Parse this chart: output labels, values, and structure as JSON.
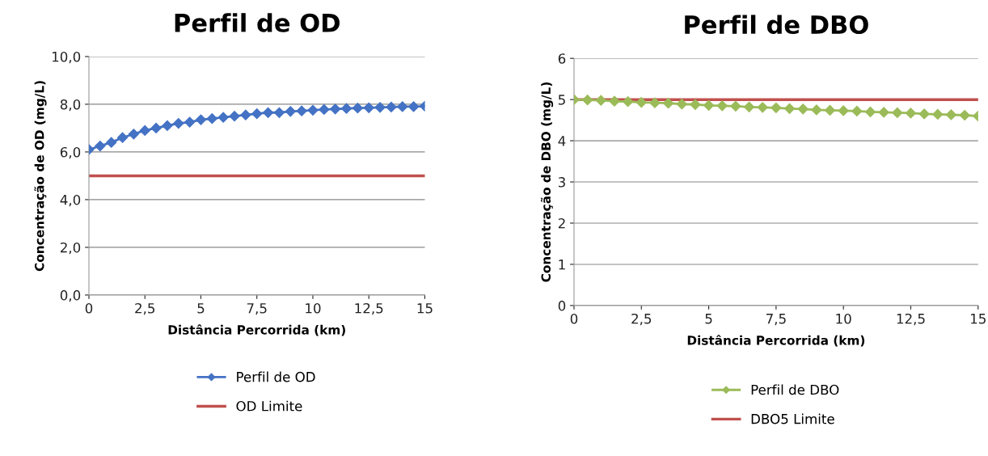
{
  "chart_data": [
    {
      "type": "line",
      "title": "Perfil de OD",
      "xlabel": "Distância Percorrida (km)",
      "ylabel": "Concentração de OD (mg/L)",
      "xlim": [
        0,
        15
      ],
      "xticks": [
        0,
        {
          "value": 2.5,
          "label": "2,5"
        },
        5,
        {
          "value": 7.5,
          "label": "7,5"
        },
        10,
        {
          "value": 12.5,
          "label": "12,5"
        },
        15
      ],
      "ylim": [
        0,
        10
      ],
      "yticks": [
        {
          "value": 0,
          "label": "0,0"
        },
        {
          "value": 2,
          "label": "2,0"
        },
        {
          "value": 4,
          "label": "4,0"
        },
        {
          "value": 6,
          "label": "6,0"
        },
        {
          "value": 8,
          "label": "8,0"
        },
        {
          "value": 10,
          "label": "10,0"
        }
      ],
      "grid": "y",
      "legend": "bottom",
      "marker": "diamond",
      "series": [
        {
          "name": "Perfil de OD",
          "color": "#4472c4",
          "x": [
            0,
            0.5,
            1,
            1.5,
            2,
            2.5,
            3,
            3.5,
            4,
            4.5,
            5,
            5.5,
            6,
            6.5,
            7,
            7.5,
            8,
            8.5,
            9,
            9.5,
            10,
            10.5,
            11,
            11.5,
            12,
            12.5,
            13,
            13.5,
            14,
            14.5,
            15
          ],
          "values": [
            6.1,
            6.25,
            6.4,
            6.6,
            6.75,
            6.9,
            7.0,
            7.1,
            7.2,
            7.25,
            7.35,
            7.4,
            7.45,
            7.5,
            7.55,
            7.6,
            7.65,
            7.65,
            7.7,
            7.72,
            7.75,
            7.78,
            7.8,
            7.82,
            7.84,
            7.85,
            7.87,
            7.88,
            7.9,
            7.9,
            7.92
          ]
        }
      ],
      "ref_lines": [
        {
          "axis": "y",
          "value": 5,
          "label": "OD Limite",
          "color": "#c0504d"
        }
      ]
    },
    {
      "type": "line",
      "title": "Perfil de DBO",
      "xlabel": "Distância Percorrida (km)",
      "ylabel": "Concentração de DBO (mg/L)",
      "xlim": [
        0,
        15
      ],
      "xticks": [
        0,
        {
          "value": 2.5,
          "label": "2,5"
        },
        5,
        {
          "value": 7.5,
          "label": "7,5"
        },
        10,
        {
          "value": 12.5,
          "label": "12,5"
        },
        15
      ],
      "ylim": [
        0,
        6
      ],
      "yticks": [
        0,
        1,
        2,
        3,
        4,
        5,
        6
      ],
      "grid": "y",
      "legend": "bottom",
      "marker": "diamond",
      "series": [
        {
          "name": "Perfil de DBO",
          "color": "#9bbb59",
          "x": [
            0,
            0.5,
            1,
            1.5,
            2,
            2.5,
            3,
            3.5,
            4,
            4.5,
            5,
            5.5,
            6,
            6.5,
            7,
            7.5,
            8,
            8.5,
            9,
            9.5,
            10,
            10.5,
            11,
            11.5,
            12,
            12.5,
            13,
            13.5,
            14,
            14.5,
            15
          ],
          "values": [
            5.0,
            4.99,
            4.98,
            4.96,
            4.95,
            4.93,
            4.92,
            4.91,
            4.89,
            4.88,
            4.86,
            4.85,
            4.84,
            4.82,
            4.81,
            4.8,
            4.78,
            4.77,
            4.75,
            4.74,
            4.73,
            4.72,
            4.7,
            4.69,
            4.68,
            4.67,
            4.65,
            4.64,
            4.63,
            4.62,
            4.6
          ]
        }
      ],
      "ref_lines": [
        {
          "axis": "y",
          "value": 5,
          "label": "DBO5 Limite",
          "color": "#c0504d"
        }
      ]
    }
  ]
}
